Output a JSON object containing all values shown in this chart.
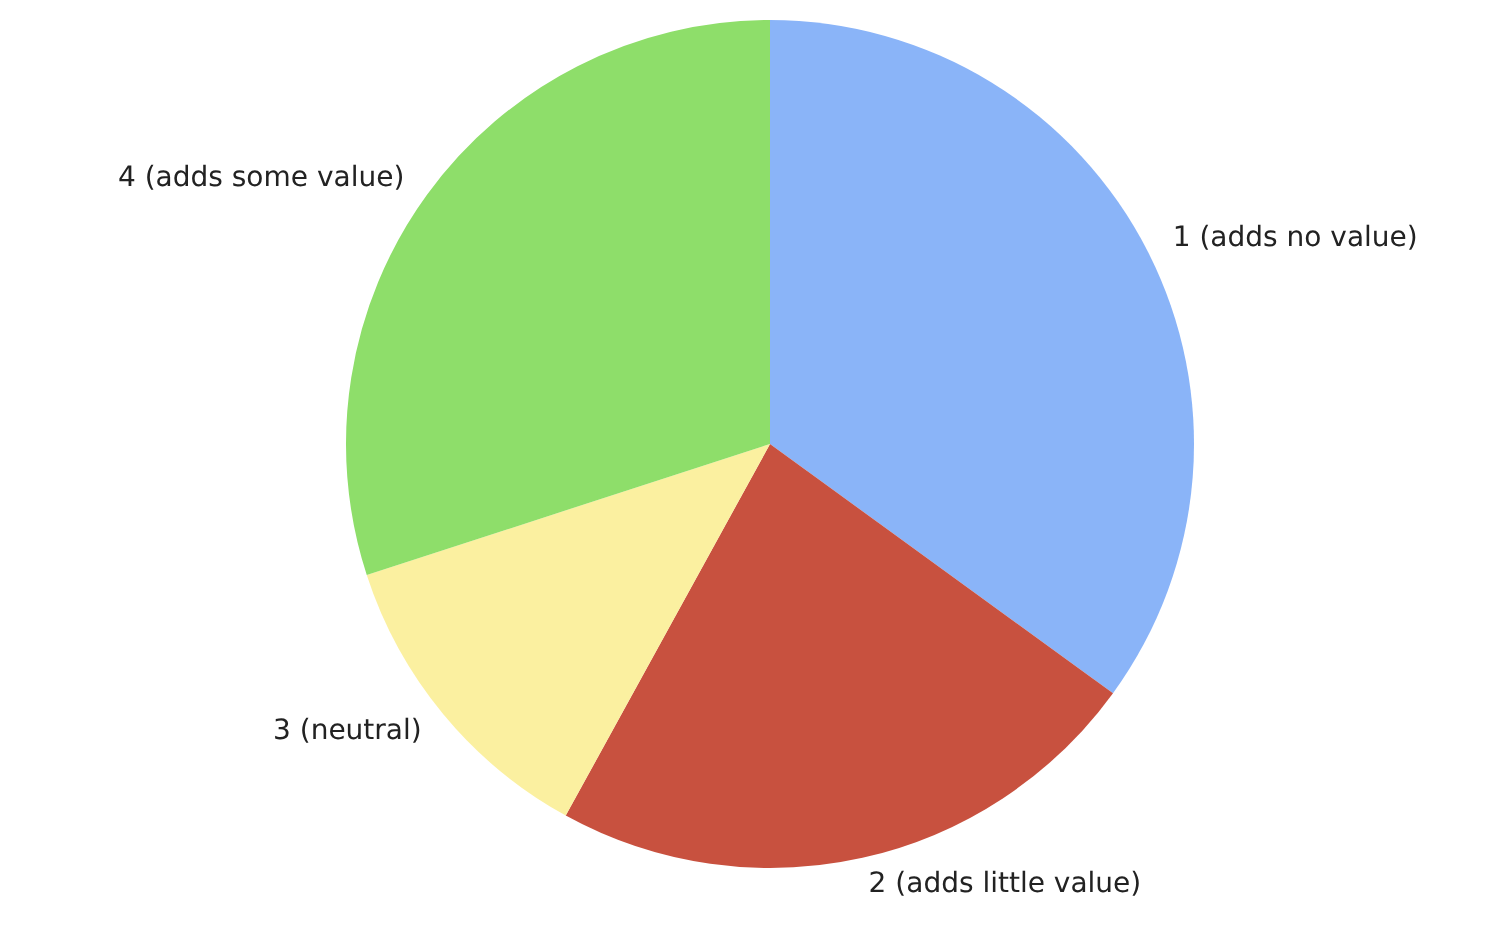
{
  "chart_data": {
    "type": "pie",
    "categories": [
      "1 (adds no value)",
      "2 (adds little value)",
      "3 (neutral)",
      "4 (adds some value)"
    ],
    "values": [
      35,
      23,
      12,
      30
    ],
    "colors": [
      "#8ab4f8",
      "#c8513f",
      "#fbf0a0",
      "#8ede6a"
    ]
  }
}
